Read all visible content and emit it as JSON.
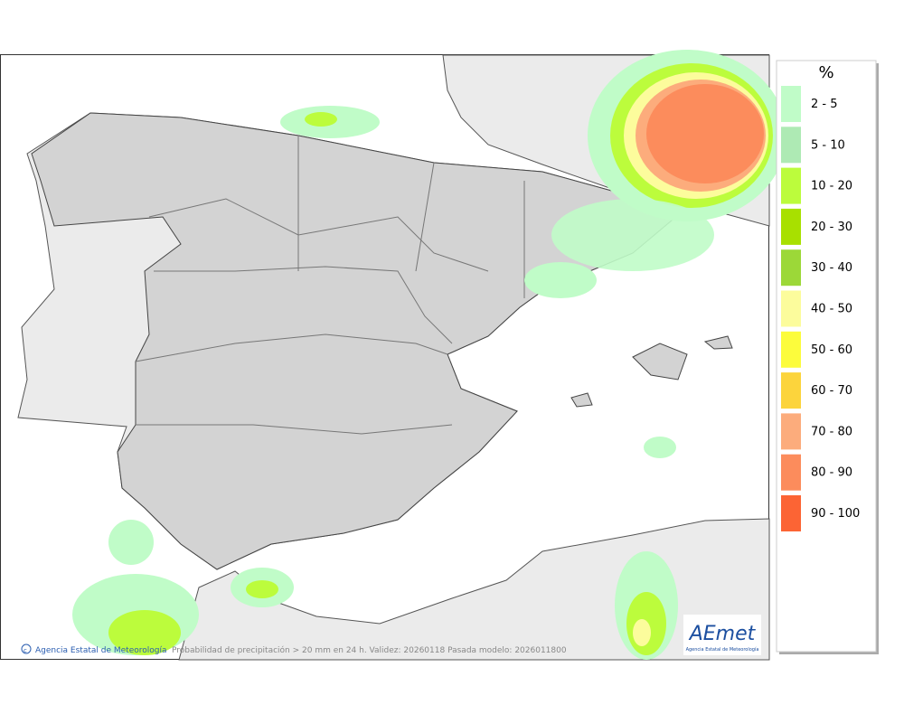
{
  "legend": {
    "title": "%",
    "items": [
      {
        "label": "2 - 5",
        "color": "#c0fcc8"
      },
      {
        "label": "5 - 10",
        "color": "#aeeab4"
      },
      {
        "label": "10 - 20",
        "color": "#bcfc3c"
      },
      {
        "label": "20 - 30",
        "color": "#a8e000"
      },
      {
        "label": "30 - 40",
        "color": "#9cd838"
      },
      {
        "label": "40 - 50",
        "color": "#fcfc9c"
      },
      {
        "label": "50 - 60",
        "color": "#fcfc3c"
      },
      {
        "label": "60 - 70",
        "color": "#fcd43c"
      },
      {
        "label": "70 - 80",
        "color": "#fcac7c"
      },
      {
        "label": "80 - 90",
        "color": "#fc8c5c"
      },
      {
        "label": "90 - 100",
        "color": "#fc6434"
      }
    ]
  },
  "footer": {
    "credit": "Agencia Estatal de Meteorología",
    "caption": "Probabilidad de precipitación > 20 mm en 24 h. Validez: 20260118 Pasada modelo: 2026011800"
  },
  "logo": {
    "name": "AEmet",
    "subtitle": "Agencia Estatal de Meteorología"
  }
}
